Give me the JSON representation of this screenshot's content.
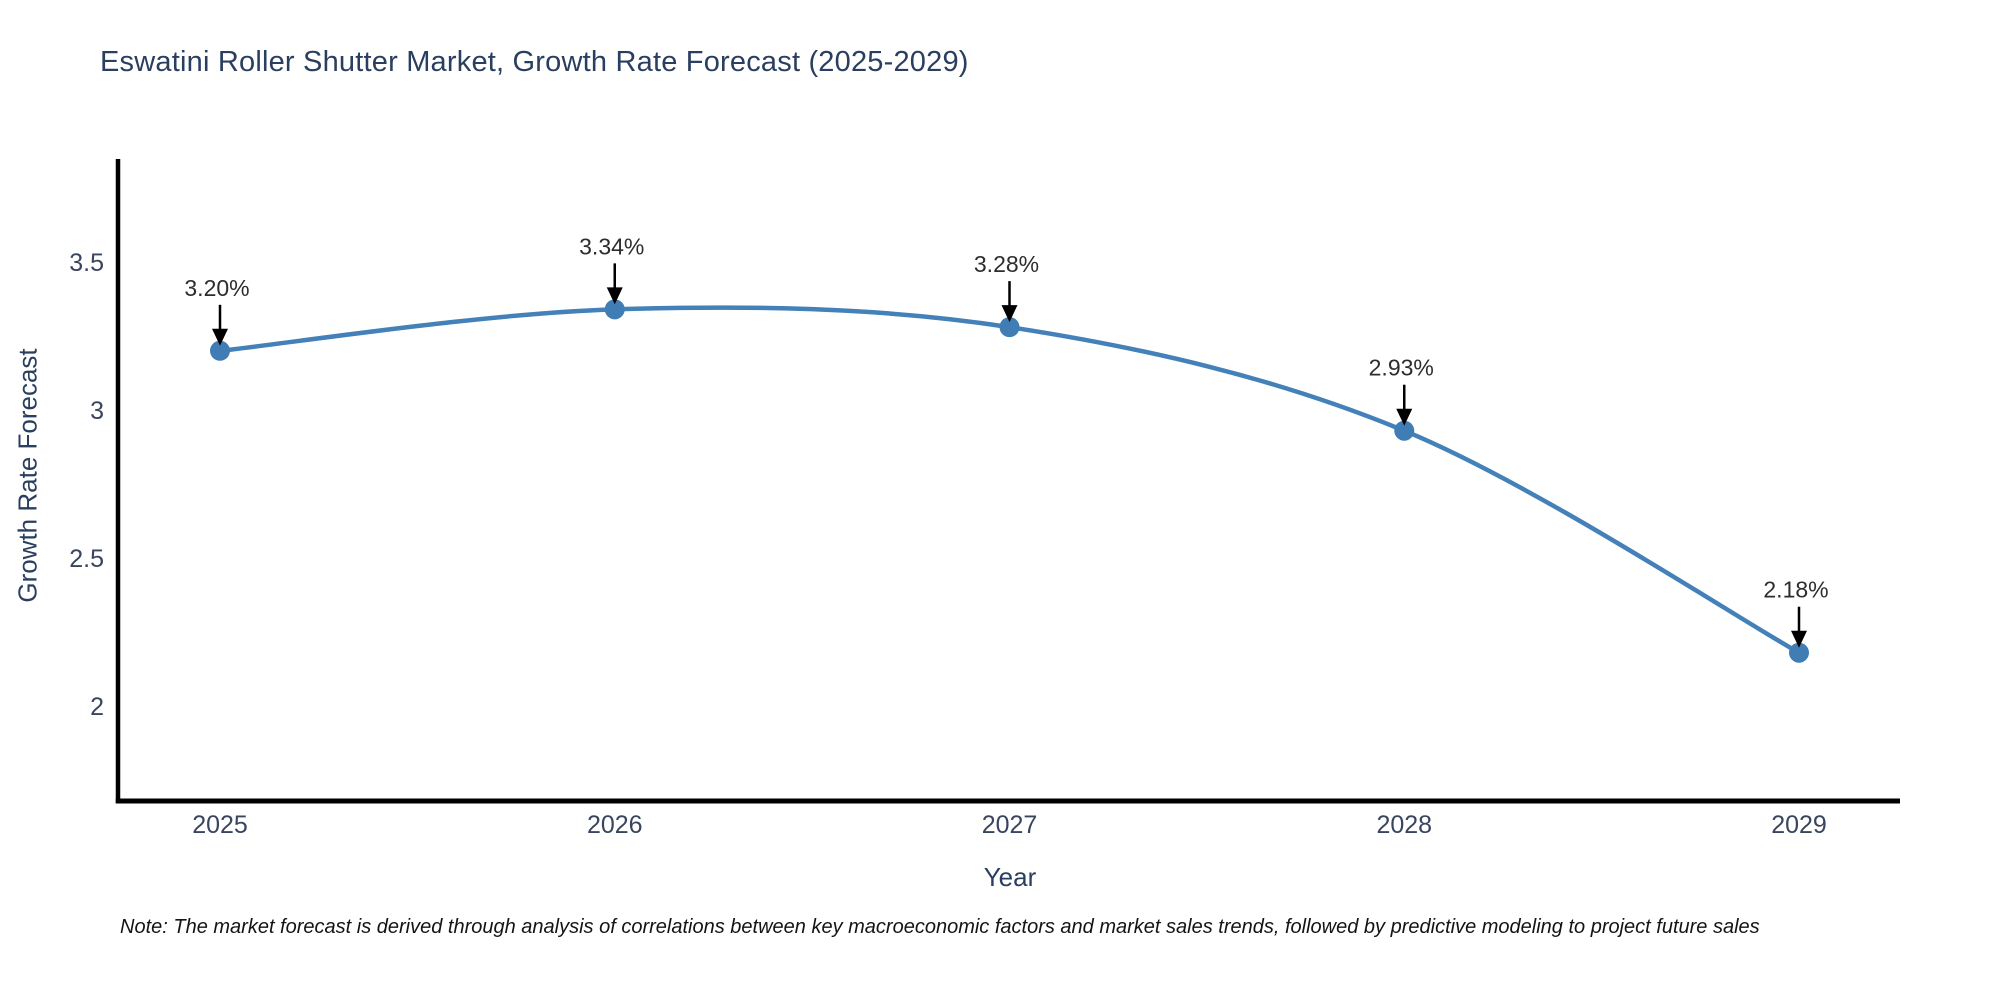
{
  "page": {
    "background": "#ffffff"
  },
  "chart_data": {
    "type": "line",
    "title": "Eswatini Roller Shutter Market, Growth Rate Forecast (2025-2029)",
    "xlabel": "Year",
    "ylabel": "Growth Rate Forecast",
    "x": [
      2025,
      2026,
      2027,
      2028,
      2029
    ],
    "x_tick_labels": [
      "2025",
      "2026",
      "2027",
      "2028",
      "2029"
    ],
    "series": [
      {
        "name": "Growth Rate Forecast",
        "values": [
          3.2,
          3.34,
          3.28,
          2.93,
          2.18
        ]
      }
    ],
    "point_labels": [
      "3.20%",
      "3.34%",
      "3.28%",
      "2.93%",
      "2.18%"
    ],
    "yticks": [
      3.5,
      3.0,
      2.5,
      2.0
    ],
    "ytick_labels": [
      "3.5",
      "3",
      "2.5",
      "2"
    ],
    "ylim": [
      1.67,
      3.85
    ],
    "xlim": [
      2024.74,
      2029.26
    ],
    "grid": false,
    "legend_position": "none",
    "line_color": "#4381b8",
    "marker_color": "#407db5",
    "axis_color": "#000000",
    "tick_label_color": "#39455e",
    "annotation_text_color": "#2d2d2d",
    "annotation_arrow_color": "#000000",
    "title_color": "#2a3f5f"
  },
  "note": {
    "text": "Note: The market forecast is derived through analysis of correlations between key macroeconomic factors and market sales trends, followed by predictive modeling to project future sales"
  }
}
